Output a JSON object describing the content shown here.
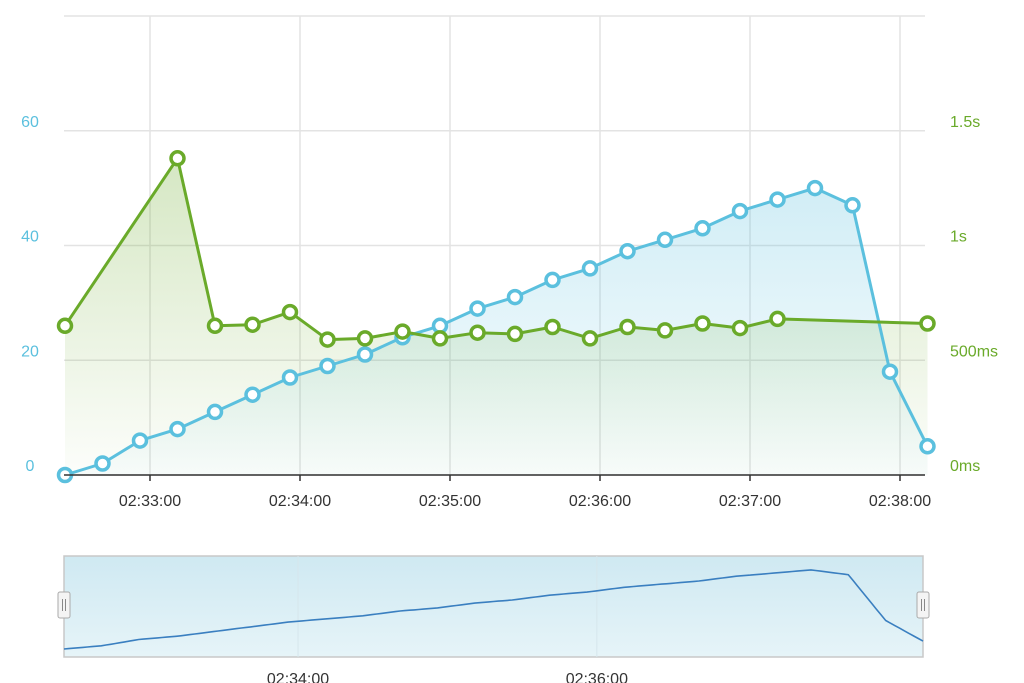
{
  "chart_data": [
    {
      "type": "line",
      "colors": {
        "requests": "#5bc0de",
        "response_time": "#6aaa2a"
      },
      "x_ticks": [
        "02:33:00",
        "02:34:00",
        "02:35:00",
        "02:36:00",
        "02:37:00",
        "02:38:00"
      ],
      "y_left": {
        "ticks": [
          "0",
          "20",
          "40",
          "60"
        ],
        "values": [
          0,
          20,
          40,
          60
        ],
        "range": [
          0,
          80
        ]
      },
      "y_right": {
        "ticks": [
          "0ms",
          "500ms",
          "1s",
          "1.5s"
        ],
        "values": [
          0,
          500,
          1000,
          1500
        ],
        "range": [
          0,
          2000
        ]
      },
      "grid": true,
      "x": [
        "02:32:26",
        "02:32:41",
        "02:32:56",
        "02:33:11",
        "02:33:26",
        "02:33:41",
        "02:33:56",
        "02:34:11",
        "02:34:26",
        "02:34:41",
        "02:34:56",
        "02:35:11",
        "02:35:26",
        "02:35:41",
        "02:35:56",
        "02:36:11",
        "02:36:26",
        "02:36:41",
        "02:36:56",
        "02:37:11",
        "02:37:26",
        "02:37:41",
        "02:37:56",
        "02:38:11"
      ],
      "series": [
        {
          "key": "requests",
          "axis": "left",
          "values": [
            0,
            2,
            6,
            8,
            11,
            14,
            17,
            19,
            21,
            24,
            26,
            29,
            31,
            34,
            36,
            39,
            41,
            43,
            46,
            48,
            50,
            47,
            18,
            5
          ]
        },
        {
          "key": "response_time",
          "axis": "right",
          "values": [
            650,
            null,
            null,
            1380,
            650,
            655,
            710,
            590,
            595,
            625,
            595,
            620,
            615,
            645,
            595,
            645,
            630,
            660,
            640,
            680,
            null,
            null,
            null,
            660
          ]
        }
      ]
    },
    {
      "type": "area",
      "role": "navigator",
      "x_ticks": [
        "02:34:00",
        "02:36:00"
      ],
      "values": [
        0,
        2,
        6,
        8,
        11,
        14,
        17,
        19,
        21,
        24,
        26,
        29,
        31,
        34,
        36,
        39,
        41,
        43,
        46,
        48,
        50,
        47,
        18,
        5
      ],
      "colors": {
        "line": "#3a7fc0",
        "fill": "#daf0f6",
        "handle": "#f4f4f4"
      }
    }
  ]
}
